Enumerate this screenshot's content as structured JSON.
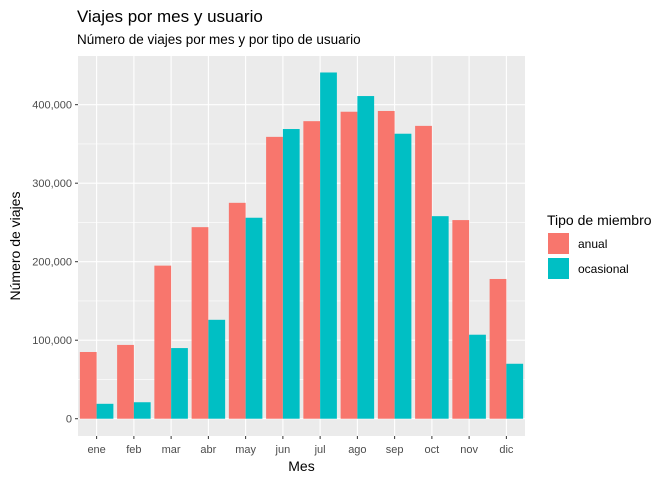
{
  "chart_data": {
    "type": "bar",
    "title": "Viajes por mes y usuario",
    "subtitle": "Número de viajes por mes y por tipo de usuario",
    "xlabel": "Mes",
    "ylabel": "Número de viajes",
    "categories": [
      "ene",
      "feb",
      "mar",
      "abr",
      "may",
      "jun",
      "jul",
      "ago",
      "sep",
      "oct",
      "nov",
      "dic"
    ],
    "series": [
      {
        "name": "anual",
        "color": "#F8766D",
        "values": [
          85000,
          94000,
          195000,
          244000,
          275000,
          359000,
          379000,
          391000,
          392000,
          373000,
          253000,
          178000
        ]
      },
      {
        "name": "ocasional",
        "color": "#00BFC4",
        "values": [
          19000,
          21000,
          90000,
          126000,
          256000,
          369000,
          441000,
          411000,
          363000,
          258000,
          107000,
          70000
        ]
      }
    ],
    "ylim": [
      -22000,
      462000
    ],
    "yticks": [
      0,
      100000,
      200000,
      300000,
      400000
    ],
    "ytick_labels": [
      "0",
      "100,000",
      "200,000",
      "300,000",
      "400,000"
    ],
    "grid": true,
    "panel_color": "#EBEBEB",
    "legend": {
      "title": "Tipo de miembro",
      "position": "right"
    }
  }
}
